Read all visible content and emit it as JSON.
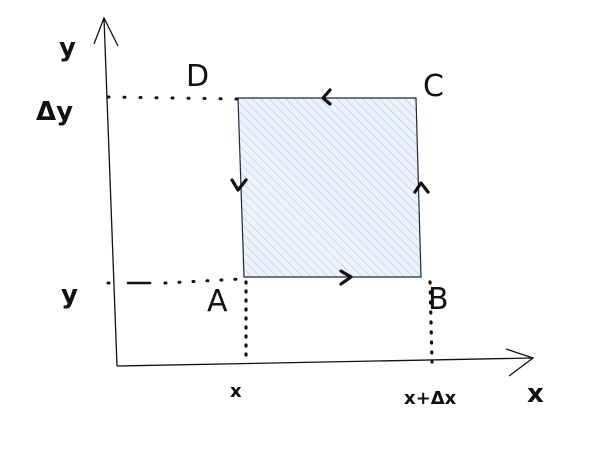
{
  "diagram": {
    "axes": {
      "x_label": "x",
      "y_label": "y"
    },
    "y_ticks": {
      "upper": "Δy",
      "lower": "y"
    },
    "x_ticks": {
      "left": "x",
      "right": "x+Δx"
    },
    "vertices": {
      "a": "A",
      "b": "B",
      "c": "C",
      "d": "D"
    },
    "colors": {
      "ink": "#111111",
      "fill_hatch": "#a9c6e8",
      "fill_base": "#eef4fb"
    }
  }
}
